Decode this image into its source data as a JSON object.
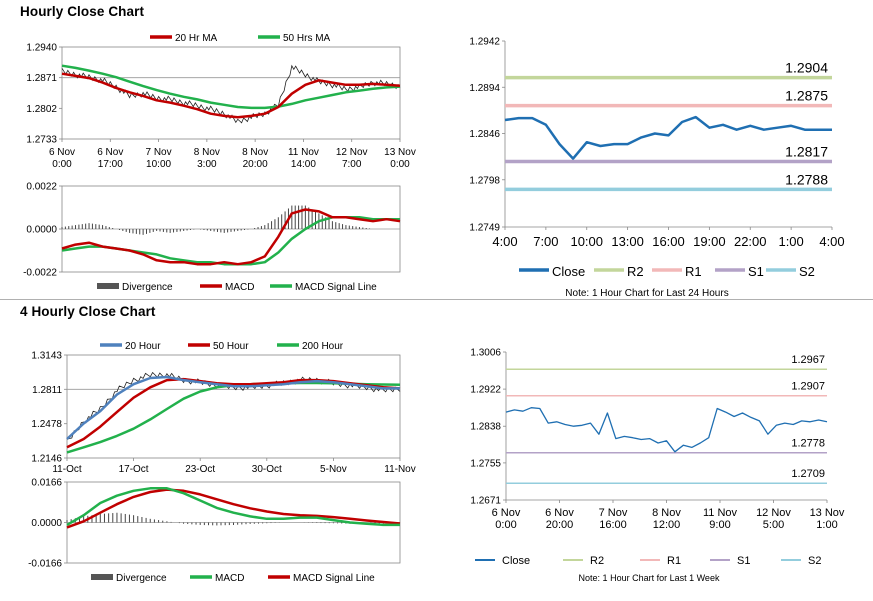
{
  "sections": {
    "hourly_title": "Hourly Close Chart",
    "four_hourly_title": "4 Hourly Close Chart"
  },
  "colors": {
    "red": "#c00000",
    "green": "#22b14c",
    "blue": "#4f81bd",
    "dark_blue": "#1f6fb2",
    "gray": "#555555",
    "r2": "#c3d69b",
    "r1": "#f2b8b8",
    "s1": "#b3a2c7",
    "s2": "#93cddd"
  },
  "chart_data": [
    {
      "id": "hourly_price",
      "type": "line",
      "legend": [
        "20 Hr MA",
        "50 Hrs MA"
      ],
      "y_ticks": [
        "1.2940",
        "1.2871",
        "1.2802",
        "1.2733"
      ],
      "ylim": [
        1.2733,
        1.294
      ],
      "x_ticks": [
        [
          "6 Nov",
          "0:00"
        ],
        [
          "6 Nov",
          "17:00"
        ],
        [
          "7 Nov",
          "10:00"
        ],
        [
          "8 Nov",
          "3:00"
        ],
        [
          "8 Nov",
          "20:00"
        ],
        [
          "11 Nov",
          "14:00"
        ],
        [
          "12 Nov",
          "7:00"
        ],
        [
          "13 Nov",
          "0:00"
        ]
      ],
      "hline": 1.2871,
      "close": [
        1.2885,
        1.2878,
        1.2872,
        1.2865,
        1.285,
        1.283,
        1.2835,
        1.2825,
        1.2822,
        1.2815,
        1.2808,
        1.28,
        1.279,
        1.2772,
        1.2782,
        1.279,
        1.281,
        1.2895,
        1.2878,
        1.2862,
        1.2855,
        1.2845,
        1.285,
        1.286,
        1.2857,
        1.2852
      ],
      "ma20": [
        1.288,
        1.2875,
        1.287,
        1.286,
        1.2848,
        1.2838,
        1.283,
        1.282,
        1.2815,
        1.2808,
        1.28,
        1.279,
        1.2785,
        1.2782,
        1.2785,
        1.279,
        1.2805,
        1.2835,
        1.2855,
        1.2865,
        1.286,
        1.2855,
        1.2855,
        1.2857,
        1.2855,
        1.2853
      ],
      "ma50": [
        1.2898,
        1.2893,
        1.2887,
        1.288,
        1.2872,
        1.2862,
        1.2852,
        1.2843,
        1.2835,
        1.2828,
        1.2822,
        1.2815,
        1.281,
        1.2805,
        1.2803,
        1.2803,
        1.2806,
        1.2812,
        1.282,
        1.2826,
        1.2832,
        1.2838,
        1.2842,
        1.2846,
        1.2849,
        1.2851
      ]
    },
    {
      "id": "hourly_macd",
      "type": "line",
      "legend": [
        "Divergence",
        "MACD",
        "MACD Signal Line"
      ],
      "y_ticks": [
        "0.0022",
        "0.0000",
        "-0.0022"
      ],
      "ylim": [
        -0.0022,
        0.0022
      ],
      "divergence": [
        0.0001,
        0.0002,
        0.0003,
        0.0002,
        0.0,
        -0.0002,
        -0.0003,
        -0.0001,
        -0.0002,
        -0.0001,
        0.0,
        -0.0001,
        -0.0002,
        -0.0001,
        0.0,
        0.0002,
        0.0006,
        0.0012,
        0.0012,
        0.0008,
        0.0004,
        0.0002,
        0.0001,
        0.0,
        0.0,
        0.0
      ],
      "macd": [
        -0.001,
        -0.0008,
        -0.0007,
        -0.0009,
        -0.001,
        -0.0011,
        -0.0013,
        -0.0016,
        -0.0017,
        -0.0017,
        -0.0018,
        -0.0018,
        -0.0017,
        -0.0018,
        -0.0017,
        -0.0014,
        -0.0004,
        0.0008,
        0.001,
        0.0009,
        0.0006,
        0.0006,
        0.0005,
        0.0004,
        0.0005,
        0.0004
      ],
      "signal": [
        -0.0011,
        -0.001,
        -0.0009,
        -0.0009,
        -0.001,
        -0.0011,
        -0.0012,
        -0.0013,
        -0.0015,
        -0.0016,
        -0.0017,
        -0.0017,
        -0.0018,
        -0.0018,
        -0.0018,
        -0.0017,
        -0.0012,
        -0.0005,
        0.0,
        0.0004,
        0.0006,
        0.0006,
        0.0006,
        0.0005,
        0.0005,
        0.0005
      ]
    },
    {
      "id": "hourly_levels",
      "type": "line",
      "legend": [
        "Close",
        "R2",
        "R1",
        "S1",
        "S2"
      ],
      "note": "Note: 1 Hour Chart for Last 24 Hours",
      "y_ticks": [
        "1.2942",
        "1.2894",
        "1.2846",
        "1.2798",
        "1.2749"
      ],
      "ylim": [
        1.2749,
        1.2942
      ],
      "x_ticks": [
        "4:00",
        "7:00",
        "10:00",
        "13:00",
        "16:00",
        "19:00",
        "22:00",
        "1:00",
        "4:00"
      ],
      "levels": [
        {
          "name": "R2",
          "value": 1.2904,
          "label": "1.2904"
        },
        {
          "name": "R1",
          "value": 1.2875,
          "label": "1.2875"
        },
        {
          "name": "S1",
          "value": 1.2817,
          "label": "1.2817"
        },
        {
          "name": "S2",
          "value": 1.2788,
          "label": "1.2788"
        }
      ],
      "close": [
        1.286,
        1.2862,
        1.2862,
        1.2855,
        1.2835,
        1.282,
        1.2837,
        1.2833,
        1.2835,
        1.2835,
        1.2842,
        1.2846,
        1.2844,
        1.2858,
        1.2863,
        1.2852,
        1.2855,
        1.285,
        1.2854,
        1.285,
        1.2852,
        1.2854,
        1.285,
        1.285,
        1.285
      ]
    },
    {
      "id": "four_hourly_price",
      "type": "line",
      "legend": [
        "20 Hour",
        "50 Hour",
        "200 Hour"
      ],
      "y_ticks": [
        "1.3143",
        "1.2811",
        "1.2478",
        "1.2146"
      ],
      "ylim": [
        1.2146,
        1.3143
      ],
      "x_ticks": [
        "11-Oct",
        "17-Oct",
        "23-Oct",
        "30-Oct",
        "5-Nov",
        "11-Nov"
      ],
      "hline": 1.2811,
      "close": [
        1.23,
        1.25,
        1.262,
        1.28,
        1.29,
        1.295,
        1.295,
        1.29,
        1.288,
        1.285,
        1.283,
        1.283,
        1.285,
        1.287,
        1.29,
        1.29,
        1.287,
        1.285,
        1.283,
        1.28,
        1.282
      ],
      "ma20": [
        1.233,
        1.248,
        1.26,
        1.276,
        1.286,
        1.292,
        1.293,
        1.29,
        1.288,
        1.286,
        1.284,
        1.284,
        1.285,
        1.286,
        1.288,
        1.289,
        1.288,
        1.286,
        1.284,
        1.282,
        1.282
      ],
      "ma50": [
        1.225,
        1.233,
        1.245,
        1.259,
        1.273,
        1.283,
        1.29,
        1.291,
        1.289,
        1.287,
        1.286,
        1.286,
        1.287,
        1.288,
        1.29,
        1.29,
        1.289,
        1.287,
        1.285,
        1.283,
        1.282
      ],
      "ma200": [
        1.22,
        1.225,
        1.23,
        1.236,
        1.243,
        1.252,
        1.262,
        1.272,
        1.279,
        1.283,
        1.285,
        1.286,
        1.2865,
        1.287,
        1.2872,
        1.2872,
        1.287,
        1.2865,
        1.286,
        1.2857,
        1.2855
      ]
    },
    {
      "id": "four_hourly_macd",
      "type": "line",
      "legend": [
        "Divergence",
        "MACD",
        "MACD Signal Line"
      ],
      "y_ticks": [
        "0.0166",
        "0.0000",
        "-0.0166"
      ],
      "ylim": [
        -0.0166,
        0.0166
      ],
      "divergence": [
        0.001,
        0.0025,
        0.0035,
        0.004,
        0.003,
        0.0015,
        0.0005,
        -0.0005,
        -0.001,
        -0.0012,
        -0.001,
        -0.0006,
        -0.0003,
        0.0,
        0.0,
        -0.0002,
        -0.0003,
        -0.0005,
        -0.0005,
        -0.0004,
        -0.0002
      ],
      "macd": [
        -0.001,
        0.003,
        0.008,
        0.011,
        0.013,
        0.014,
        0.014,
        0.012,
        0.009,
        0.006,
        0.004,
        0.0025,
        0.0015,
        0.0015,
        0.002,
        0.002,
        0.001,
        0.0,
        -0.0005,
        -0.001,
        -0.001
      ],
      "signal": [
        -0.002,
        0.0005,
        0.004,
        0.0075,
        0.0105,
        0.0125,
        0.0135,
        0.013,
        0.0115,
        0.0095,
        0.0075,
        0.0058,
        0.0045,
        0.0035,
        0.003,
        0.0027,
        0.0022,
        0.0015,
        0.0008,
        0.0002,
        -0.0004
      ]
    },
    {
      "id": "weekly_levels",
      "type": "line",
      "legend": [
        "Close",
        "R2",
        "R1",
        "S1",
        "S2"
      ],
      "note": "Note: 1 Hour Chart for Last 1 Week",
      "y_ticks": [
        "1.3006",
        "1.2922",
        "1.2838",
        "1.2755",
        "1.2671"
      ],
      "ylim": [
        1.2671,
        1.3006
      ],
      "x_ticks": [
        [
          "6 Nov",
          "0:00"
        ],
        [
          "6 Nov",
          "20:00"
        ],
        [
          "7 Nov",
          "16:00"
        ],
        [
          "8 Nov",
          "12:00"
        ],
        [
          "11 Nov",
          "9:00"
        ],
        [
          "12 Nov",
          "5:00"
        ],
        [
          "13 Nov",
          "1:00"
        ]
      ],
      "levels": [
        {
          "name": "R2",
          "value": 1.2967,
          "label": "1.2967"
        },
        {
          "name": "R1",
          "value": 1.2907,
          "label": "1.2907"
        },
        {
          "name": "S1",
          "value": 1.2778,
          "label": "1.2778"
        },
        {
          "name": "S2",
          "value": 1.2709,
          "label": "1.2709"
        }
      ],
      "close": [
        1.287,
        1.2875,
        1.2872,
        1.288,
        1.2878,
        1.2845,
        1.2848,
        1.2842,
        1.2838,
        1.284,
        1.2845,
        1.282,
        1.2868,
        1.281,
        1.2815,
        1.2812,
        1.2808,
        1.281,
        1.28,
        1.2805,
        1.278,
        1.2795,
        1.279,
        1.28,
        1.2812,
        1.2878,
        1.287,
        1.286,
        1.2868,
        1.2858,
        1.285,
        1.282,
        1.284,
        1.2845,
        1.2842,
        1.285,
        1.2848,
        1.2852,
        1.2848
      ]
    }
  ]
}
